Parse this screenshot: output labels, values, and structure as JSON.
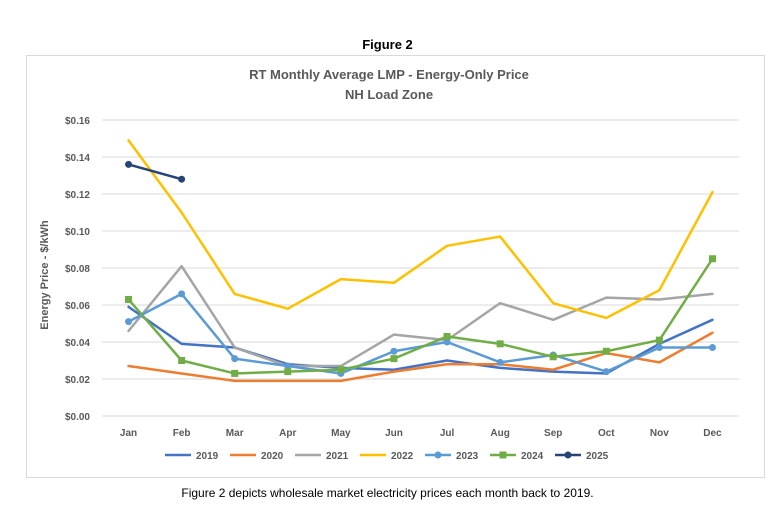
{
  "figure_label": "Figure 2",
  "caption": "Figure 2 depicts wholesale market electricity prices each month back to 2019.",
  "chart_data": {
    "type": "line",
    "title": "RT Monthly Average LMP - Energy-Only Price",
    "subtitle": "NH Load Zone",
    "xlabel": "",
    "ylabel": "Energy Price - $/kWh",
    "categories": [
      "Jan",
      "Feb",
      "Mar",
      "Apr",
      "May",
      "Jun",
      "Jul",
      "Aug",
      "Sep",
      "Oct",
      "Nov",
      "Dec"
    ],
    "ylim": [
      0,
      0.16
    ],
    "yticks": [
      0,
      0.02,
      0.04,
      0.06,
      0.08,
      0.1,
      0.12,
      0.14,
      0.16
    ],
    "ytick_labels": [
      "$0.00",
      "$0.02",
      "$0.04",
      "$0.06",
      "$0.08",
      "$0.10",
      "$0.12",
      "$0.14",
      "$0.16"
    ],
    "grid": true,
    "legend_position": "bottom",
    "series": [
      {
        "name": "2019",
        "color": "#4472C4",
        "marker": "none",
        "values": [
          0.059,
          0.039,
          0.037,
          0.028,
          0.026,
          0.025,
          0.03,
          0.026,
          0.024,
          0.023,
          0.039,
          0.052
        ]
      },
      {
        "name": "2020",
        "color": "#ED7D31",
        "marker": "none",
        "values": [
          0.027,
          0.023,
          0.019,
          0.019,
          0.019,
          0.024,
          0.028,
          0.028,
          0.025,
          0.034,
          0.029,
          0.045
        ]
      },
      {
        "name": "2021",
        "color": "#A5A5A5",
        "marker": "none",
        "values": [
          0.046,
          0.081,
          0.037,
          0.027,
          0.027,
          0.044,
          0.041,
          0.061,
          0.052,
          0.064,
          0.063,
          0.066
        ]
      },
      {
        "name": "2022",
        "color": "#FFC000",
        "marker": "none",
        "values": [
          0.149,
          0.11,
          0.066,
          0.058,
          0.074,
          0.072,
          0.092,
          0.097,
          0.061,
          0.053,
          0.068,
          0.121
        ]
      },
      {
        "name": "2023",
        "color": "#5B9BD5",
        "marker": "circle",
        "values": [
          0.051,
          0.066,
          0.031,
          0.027,
          0.023,
          0.035,
          0.04,
          0.029,
          0.033,
          0.024,
          0.037,
          0.037
        ]
      },
      {
        "name": "2024",
        "color": "#70AD47",
        "marker": "square",
        "values": [
          0.063,
          0.03,
          0.023,
          0.024,
          0.025,
          0.031,
          0.043,
          0.039,
          0.032,
          0.035,
          0.041,
          0.085
        ]
      },
      {
        "name": "2025",
        "color": "#264478",
        "marker": "circle",
        "values": [
          0.136,
          0.128,
          null,
          null,
          null,
          null,
          null,
          null,
          null,
          null,
          null,
          null
        ]
      }
    ]
  }
}
